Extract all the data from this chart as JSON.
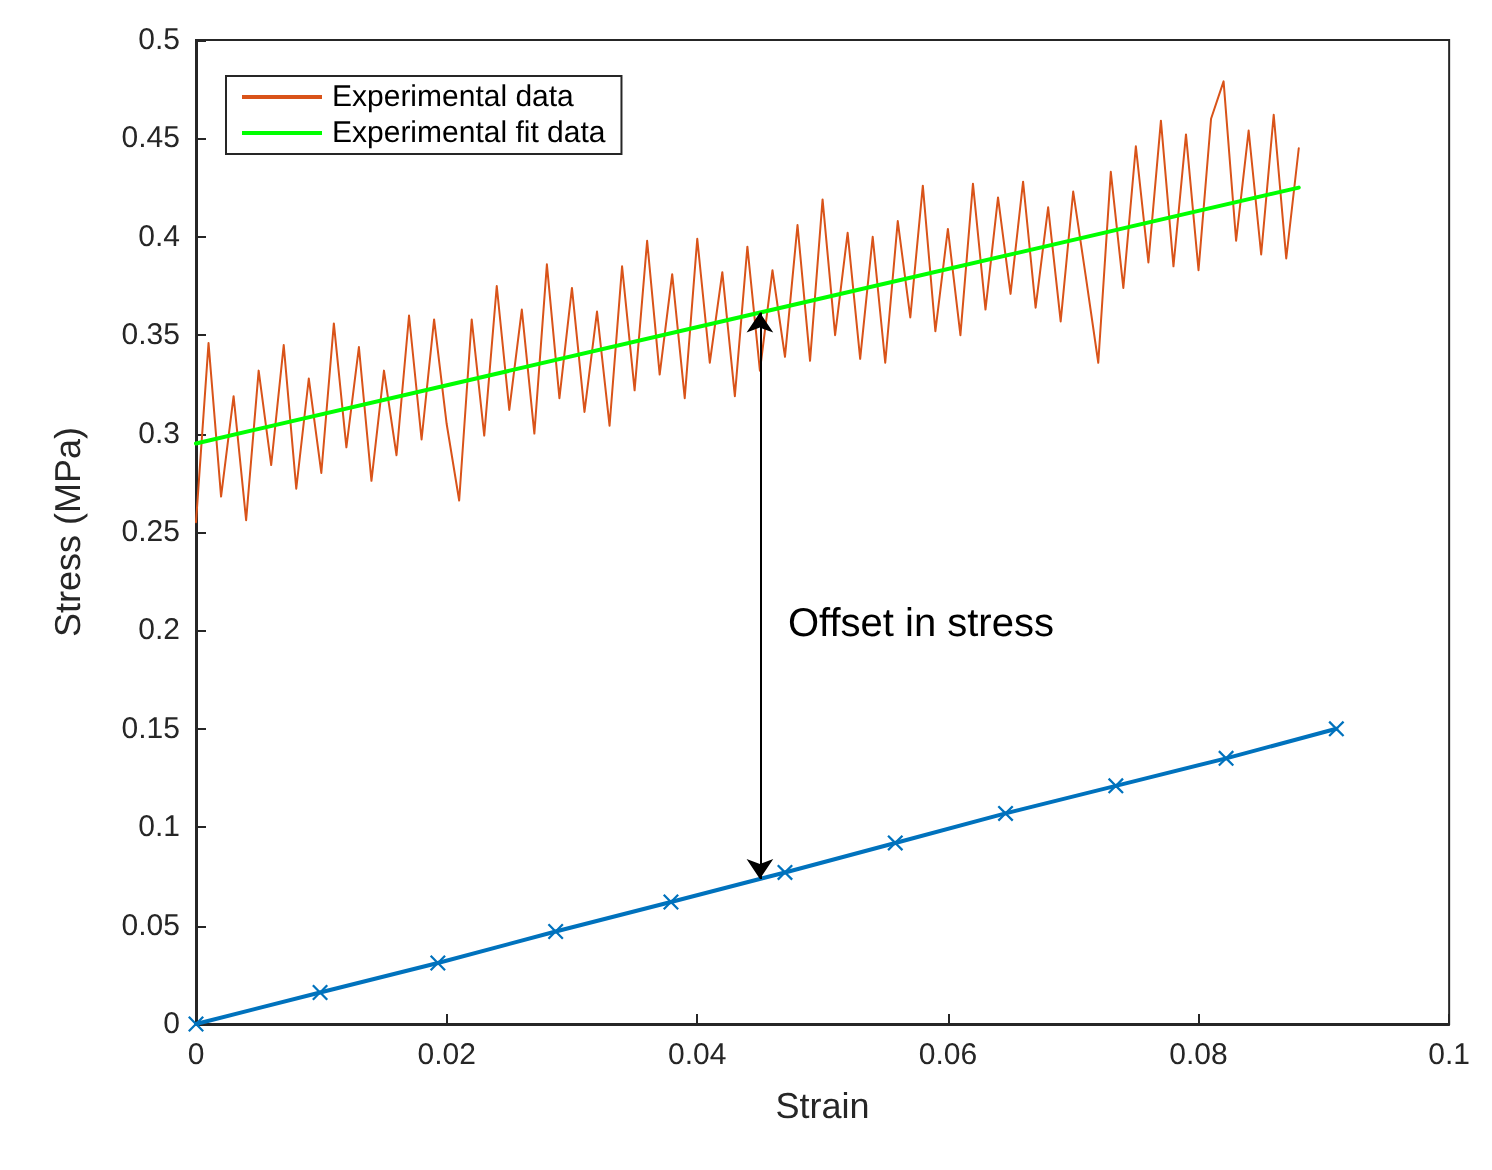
{
  "chart_data": {
    "type": "line",
    "xlabel": "Strain",
    "ylabel": "Stress (MPa)",
    "xlim": [
      0,
      0.1
    ],
    "xticks": [
      0,
      0.02,
      0.04,
      0.06,
      0.08,
      0.1
    ],
    "ylim": [
      0,
      0.5
    ],
    "yticks": [
      0,
      0.05,
      0.1,
      0.15,
      0.2,
      0.25,
      0.3,
      0.35,
      0.4,
      0.45,
      0.5
    ],
    "grid": false,
    "legend": "top left",
    "annotations": [
      "Offset in stress"
    ],
    "series": [
      {
        "color": "#0072bd",
        "marker": "cross",
        "x": [
          0,
          0.0099,
          0.0193,
          0.0287,
          0.0379,
          0.047,
          0.0558,
          0.0646,
          0.0734,
          0.0822,
          0.091
        ],
        "values": [
          0,
          0.016,
          0.031,
          0.047,
          0.062,
          0.077,
          0.092,
          0.107,
          0.121,
          0.135,
          0.15
        ]
      },
      {
        "name": "Experimental data",
        "color": "#d95319",
        "marker": "none",
        "x": [
          0,
          0.001,
          0.002,
          0.003,
          0.004,
          0.005,
          0.006,
          0.007,
          0.008,
          0.009,
          0.01,
          0.011,
          0.012,
          0.013,
          0.014,
          0.015,
          0.016,
          0.017,
          0.018,
          0.019,
          0.02,
          0.021,
          0.022,
          0.023,
          0.024,
          0.025,
          0.026,
          0.027,
          0.028,
          0.029,
          0.03,
          0.031,
          0.032,
          0.033,
          0.034,
          0.035,
          0.036,
          0.037,
          0.038,
          0.039,
          0.04,
          0.041,
          0.042,
          0.043,
          0.044,
          0.045,
          0.046,
          0.047,
          0.048,
          0.049,
          0.05,
          0.051,
          0.052,
          0.053,
          0.054,
          0.055,
          0.056,
          0.057,
          0.058,
          0.059,
          0.06,
          0.061,
          0.062,
          0.063,
          0.064,
          0.065,
          0.066,
          0.067,
          0.068,
          0.069,
          0.07,
          0.071,
          0.072,
          0.073,
          0.074,
          0.075,
          0.076,
          0.077,
          0.078,
          0.079,
          0.08,
          0.081,
          0.082,
          0.083,
          0.084,
          0.085,
          0.086,
          0.087,
          0.088
        ],
        "values": [
          0.255,
          0.346,
          0.268,
          0.319,
          0.256,
          0.332,
          0.284,
          0.345,
          0.272,
          0.328,
          0.28,
          0.356,
          0.293,
          0.344,
          0.276,
          0.332,
          0.289,
          0.36,
          0.297,
          0.358,
          0.305,
          0.266,
          0.358,
          0.299,
          0.375,
          0.312,
          0.363,
          0.3,
          0.386,
          0.318,
          0.374,
          0.311,
          0.362,
          0.304,
          0.385,
          0.322,
          0.398,
          0.33,
          0.381,
          0.318,
          0.399,
          0.336,
          0.382,
          0.319,
          0.395,
          0.332,
          0.383,
          0.339,
          0.406,
          0.337,
          0.419,
          0.35,
          0.402,
          0.338,
          0.4,
          0.336,
          0.408,
          0.359,
          0.426,
          0.352,
          0.404,
          0.35,
          0.427,
          0.363,
          0.42,
          0.371,
          0.428,
          0.364,
          0.415,
          0.357,
          0.423,
          0.38,
          0.336,
          0.433,
          0.374,
          0.446,
          0.387,
          0.459,
          0.385,
          0.452,
          0.383,
          0.46,
          0.479,
          0.398,
          0.454,
          0.391,
          0.462,
          0.389,
          0.445
        ]
      },
      {
        "name": "Experimental fit data",
        "type": "line",
        "color": "#00ff00",
        "marker": "none",
        "x": [
          0,
          0.088
        ],
        "values": [
          0.295,
          0.425
        ]
      }
    ]
  }
}
